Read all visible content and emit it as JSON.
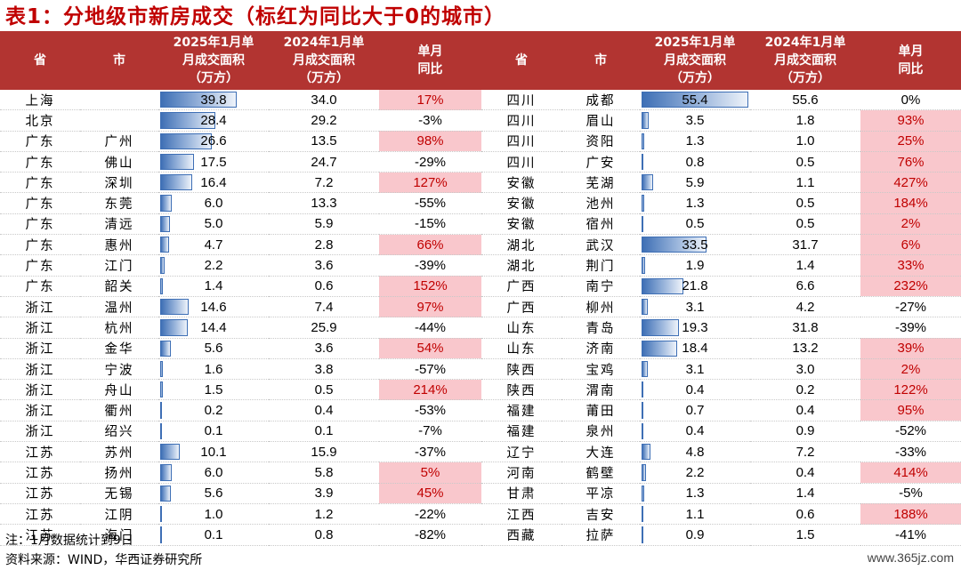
{
  "title": "表1：分地级市新房成交（标红为同比大于0的城市）",
  "headers": [
    "省",
    "市",
    "2025年1月单\n月成交面积\n（万方）",
    "2024年1月单\n月成交面积\n（万方）",
    "单月\n同比"
  ],
  "bar_max": 55.4,
  "left_rows": [
    {
      "prov": "上海",
      "city": "",
      "v2025": "39.8",
      "v2024": "34.0",
      "yoy": "17%",
      "red": true
    },
    {
      "prov": "北京",
      "city": "",
      "v2025": "28.4",
      "v2024": "29.2",
      "yoy": "-3%",
      "red": false
    },
    {
      "prov": "广东",
      "city": "广州",
      "v2025": "26.6",
      "v2024": "13.5",
      "yoy": "98%",
      "red": true
    },
    {
      "prov": "广东",
      "city": "佛山",
      "v2025": "17.5",
      "v2024": "24.7",
      "yoy": "-29%",
      "red": false
    },
    {
      "prov": "广东",
      "city": "深圳",
      "v2025": "16.4",
      "v2024": "7.2",
      "yoy": "127%",
      "red": true
    },
    {
      "prov": "广东",
      "city": "东莞",
      "v2025": "6.0",
      "v2024": "13.3",
      "yoy": "-55%",
      "red": false
    },
    {
      "prov": "广东",
      "city": "清远",
      "v2025": "5.0",
      "v2024": "5.9",
      "yoy": "-15%",
      "red": false
    },
    {
      "prov": "广东",
      "city": "惠州",
      "v2025": "4.7",
      "v2024": "2.8",
      "yoy": "66%",
      "red": true
    },
    {
      "prov": "广东",
      "city": "江门",
      "v2025": "2.2",
      "v2024": "3.6",
      "yoy": "-39%",
      "red": false
    },
    {
      "prov": "广东",
      "city": "韶关",
      "v2025": "1.4",
      "v2024": "0.6",
      "yoy": "152%",
      "red": true
    },
    {
      "prov": "浙江",
      "city": "温州",
      "v2025": "14.6",
      "v2024": "7.4",
      "yoy": "97%",
      "red": true
    },
    {
      "prov": "浙江",
      "city": "杭州",
      "v2025": "14.4",
      "v2024": "25.9",
      "yoy": "-44%",
      "red": false
    },
    {
      "prov": "浙江",
      "city": "金华",
      "v2025": "5.6",
      "v2024": "3.6",
      "yoy": "54%",
      "red": true
    },
    {
      "prov": "浙江",
      "city": "宁波",
      "v2025": "1.6",
      "v2024": "3.8",
      "yoy": "-57%",
      "red": false
    },
    {
      "prov": "浙江",
      "city": "舟山",
      "v2025": "1.5",
      "v2024": "0.5",
      "yoy": "214%",
      "red": true
    },
    {
      "prov": "浙江",
      "city": "衢州",
      "v2025": "0.2",
      "v2024": "0.4",
      "yoy": "-53%",
      "red": false
    },
    {
      "prov": "浙江",
      "city": "绍兴",
      "v2025": "0.1",
      "v2024": "0.1",
      "yoy": "-7%",
      "red": false
    },
    {
      "prov": "江苏",
      "city": "苏州",
      "v2025": "10.1",
      "v2024": "15.9",
      "yoy": "-37%",
      "red": false
    },
    {
      "prov": "江苏",
      "city": "扬州",
      "v2025": "6.0",
      "v2024": "5.8",
      "yoy": "5%",
      "red": true
    },
    {
      "prov": "江苏",
      "city": "无锡",
      "v2025": "5.6",
      "v2024": "3.9",
      "yoy": "45%",
      "red": true
    },
    {
      "prov": "江苏",
      "city": "江阴",
      "v2025": "1.0",
      "v2024": "1.2",
      "yoy": "-22%",
      "red": false
    },
    {
      "prov": "江苏",
      "city": "海门",
      "v2025": "0.1",
      "v2024": "0.8",
      "yoy": "-82%",
      "red": false
    }
  ],
  "right_rows": [
    {
      "prov": "四川",
      "city": "成都",
      "v2025": "55.4",
      "v2024": "55.6",
      "yoy": "0%",
      "red": false
    },
    {
      "prov": "四川",
      "city": "眉山",
      "v2025": "3.5",
      "v2024": "1.8",
      "yoy": "93%",
      "red": true
    },
    {
      "prov": "四川",
      "city": "资阳",
      "v2025": "1.3",
      "v2024": "1.0",
      "yoy": "25%",
      "red": true
    },
    {
      "prov": "四川",
      "city": "广安",
      "v2025": "0.8",
      "v2024": "0.5",
      "yoy": "76%",
      "red": true
    },
    {
      "prov": "安徽",
      "city": "芜湖",
      "v2025": "5.9",
      "v2024": "1.1",
      "yoy": "427%",
      "red": true
    },
    {
      "prov": "安徽",
      "city": "池州",
      "v2025": "1.3",
      "v2024": "0.5",
      "yoy": "184%",
      "red": true
    },
    {
      "prov": "安徽",
      "city": "宿州",
      "v2025": "0.5",
      "v2024": "0.5",
      "yoy": "2%",
      "red": true
    },
    {
      "prov": "湖北",
      "city": "武汉",
      "v2025": "33.5",
      "v2024": "31.7",
      "yoy": "6%",
      "red": true
    },
    {
      "prov": "湖北",
      "city": "荆门",
      "v2025": "1.9",
      "v2024": "1.4",
      "yoy": "33%",
      "red": true
    },
    {
      "prov": "广西",
      "city": "南宁",
      "v2025": "21.8",
      "v2024": "6.6",
      "yoy": "232%",
      "red": true
    },
    {
      "prov": "广西",
      "city": "柳州",
      "v2025": "3.1",
      "v2024": "4.2",
      "yoy": "-27%",
      "red": false
    },
    {
      "prov": "山东",
      "city": "青岛",
      "v2025": "19.3",
      "v2024": "31.8",
      "yoy": "-39%",
      "red": false
    },
    {
      "prov": "山东",
      "city": "济南",
      "v2025": "18.4",
      "v2024": "13.2",
      "yoy": "39%",
      "red": true
    },
    {
      "prov": "陕西",
      "city": "宝鸡",
      "v2025": "3.1",
      "v2024": "3.0",
      "yoy": "2%",
      "red": true
    },
    {
      "prov": "陕西",
      "city": "渭南",
      "v2025": "0.4",
      "v2024": "0.2",
      "yoy": "122%",
      "red": true
    },
    {
      "prov": "福建",
      "city": "莆田",
      "v2025": "0.7",
      "v2024": "0.4",
      "yoy": "95%",
      "red": true
    },
    {
      "prov": "福建",
      "city": "泉州",
      "v2025": "0.4",
      "v2024": "0.9",
      "yoy": "-52%",
      "red": false
    },
    {
      "prov": "辽宁",
      "city": "大连",
      "v2025": "4.8",
      "v2024": "7.2",
      "yoy": "-33%",
      "red": false
    },
    {
      "prov": "河南",
      "city": "鹤壁",
      "v2025": "2.2",
      "v2024": "0.4",
      "yoy": "414%",
      "red": true
    },
    {
      "prov": "甘肃",
      "city": "平凉",
      "v2025": "1.3",
      "v2024": "1.4",
      "yoy": "-5%",
      "red": false
    },
    {
      "prov": "江西",
      "city": "吉安",
      "v2025": "1.1",
      "v2024": "0.6",
      "yoy": "188%",
      "red": true
    },
    {
      "prov": "西藏",
      "city": "拉萨",
      "v2025": "0.9",
      "v2024": "1.5",
      "yoy": "-41%",
      "red": false
    }
  ],
  "note": "注：1月数据统计到9日",
  "source": "资料来源：WIND，华西证券研究所",
  "watermark": "www.365jz.com",
  "colors": {
    "header_bg": "#b23431",
    "title": "#c00000",
    "red_cell_bg": "#f9c7cc",
    "bar": "#3e6fb5"
  }
}
